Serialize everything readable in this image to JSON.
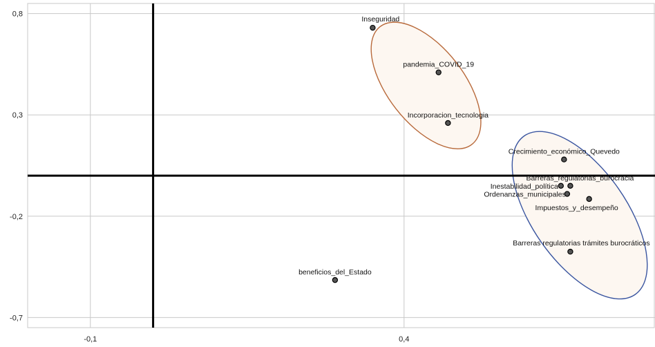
{
  "chart_data": {
    "type": "scatter",
    "xlim": [
      -0.2,
      0.8
    ],
    "ylim": [
      -0.75,
      0.85
    ],
    "x_ticks": [
      {
        "value": -0.1,
        "label": "-0,1"
      },
      {
        "value": 0.4,
        "label": "0,4"
      }
    ],
    "y_ticks": [
      {
        "value": 0.8,
        "label": "0,8"
      },
      {
        "value": 0.3,
        "label": "0,3"
      },
      {
        "value": -0.2,
        "label": "-0,2"
      },
      {
        "value": -0.7,
        "label": "-0,7"
      }
    ],
    "grid": true,
    "reference_lines": {
      "x": 0.0,
      "y": 0.0
    },
    "points": [
      {
        "label": "Inseguridad",
        "x": 0.35,
        "y": 0.73,
        "label_pos": "left"
      },
      {
        "label": "pandemia_COVID_19",
        "x": 0.455,
        "y": 0.51,
        "label_pos": "center"
      },
      {
        "label": "Incorporacion_tecnologia",
        "x": 0.47,
        "y": 0.26,
        "label_pos": "center"
      },
      {
        "label": "Crecimiento_económico_Quevedo",
        "x": 0.655,
        "y": 0.08,
        "label_pos": "center"
      },
      {
        "label": "Barreras_regulatorias_burocracia",
        "x": 0.665,
        "y": -0.05,
        "label_pos": "center"
      },
      {
        "label": "Inestabilidad_política",
        "x": 0.65,
        "y": -0.05,
        "label_pos": "left"
      },
      {
        "label": "Ordenanzas_municipales",
        "x": 0.66,
        "y": -0.09,
        "label_pos": "left"
      },
      {
        "label": "Impuestos_y_desempeño",
        "x": 0.695,
        "y": -0.115,
        "label_pos": "below"
      },
      {
        "label": "Barreras regulatorias trámites burocráticos",
        "x": 0.665,
        "y": -0.375,
        "label_pos": "center"
      },
      {
        "label": "beneficios_del_Estado",
        "x": 0.29,
        "y": -0.515,
        "label_pos": "center"
      }
    ],
    "ellipses": [
      {
        "center_x": 0.435,
        "center_y": 0.445,
        "color": "#b8693a"
      },
      {
        "center_x": 0.68,
        "center_y": -0.195,
        "color": "#3a55a0"
      }
    ]
  },
  "colors": {
    "grid": "#c8c8c8",
    "axis": "#000000",
    "point_fill": "#555555",
    "ellipse_fill": "#fdf7f1"
  }
}
